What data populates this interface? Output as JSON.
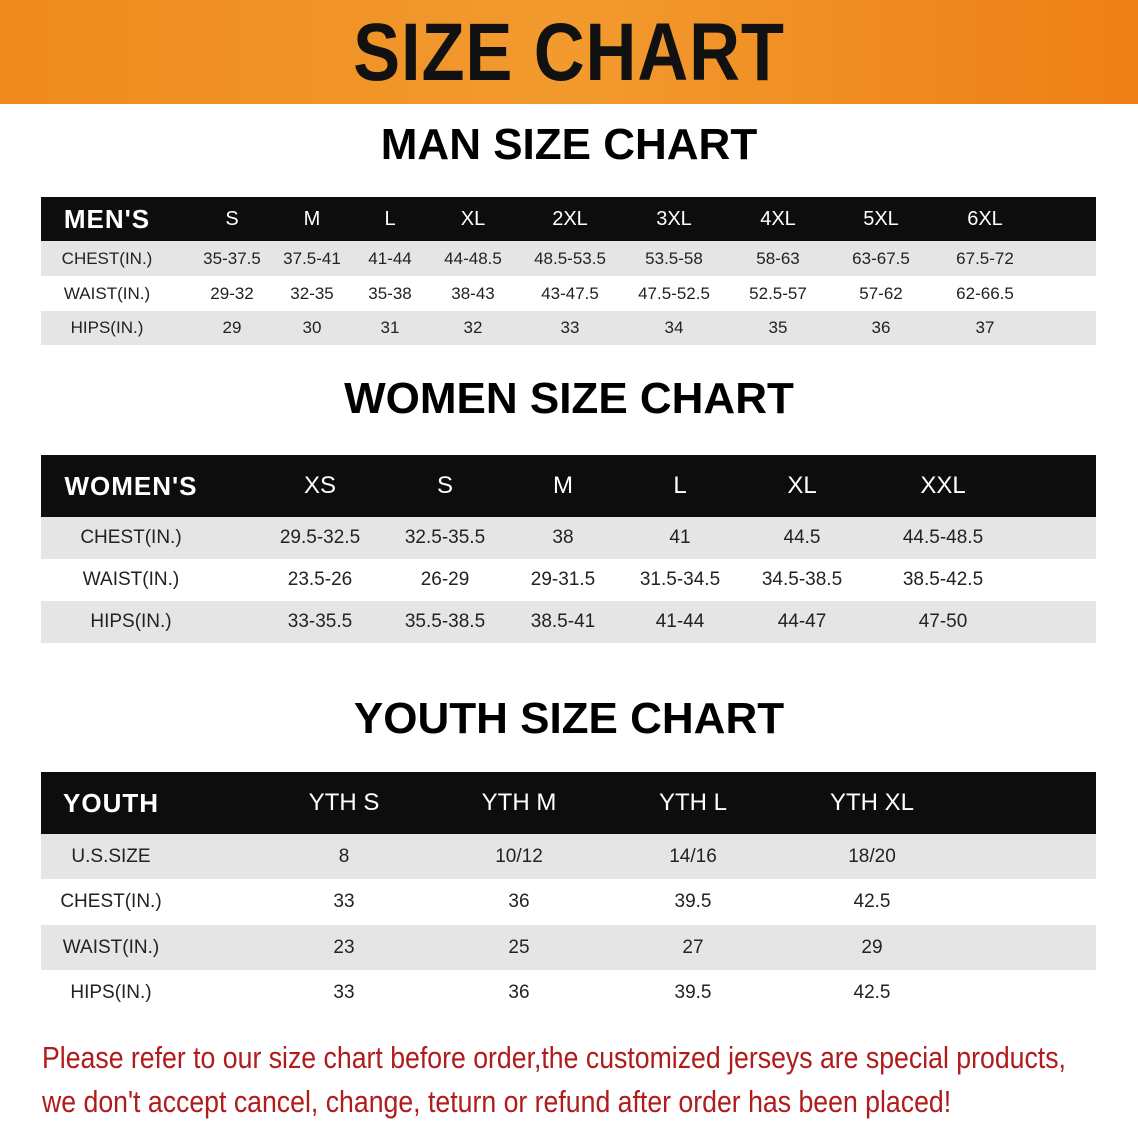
{
  "banner_title": "SIZE CHART",
  "colors": {
    "banner": "#f0891e",
    "header_row": "#0d0d0d",
    "stripe": "#e5e5e6",
    "note": "#b01c1c"
  },
  "men": {
    "title": "MAN SIZE CHART",
    "columns": [
      "MEN'S",
      "S",
      "M",
      "L",
      "XL",
      "2XL",
      "3XL",
      "4XL",
      "5XL",
      "6XL"
    ],
    "rows": [
      [
        "CHEST(IN.)",
        "35-37.5",
        "37.5-41",
        "41-44",
        "44-48.5",
        "48.5-53.5",
        "53.5-58",
        "58-63",
        "63-67.5",
        "67.5-72"
      ],
      [
        "WAIST(IN.)",
        "29-32",
        "32-35",
        "35-38",
        "38-43",
        "43-47.5",
        "47.5-52.5",
        "52.5-57",
        "57-62",
        "62-66.5"
      ],
      [
        "HIPS(IN.)",
        "29",
        "30",
        "31",
        "32",
        "33",
        "34",
        "35",
        "36",
        "37"
      ]
    ]
  },
  "women": {
    "title": "WOMEN SIZE CHART",
    "columns": [
      "WOMEN'S",
      "XS",
      "S",
      "M",
      "L",
      "XL",
      "XXL"
    ],
    "rows": [
      [
        "CHEST(IN.)",
        "29.5-32.5",
        "32.5-35.5",
        "38",
        "41",
        "44.5",
        "44.5-48.5"
      ],
      [
        "WAIST(IN.)",
        "23.5-26",
        "26-29",
        "29-31.5",
        "31.5-34.5",
        "34.5-38.5",
        "38.5-42.5"
      ],
      [
        "HIPS(IN.)",
        "33-35.5",
        "35.5-38.5",
        "38.5-41",
        "41-44",
        "44-47",
        "47-50"
      ]
    ]
  },
  "youth": {
    "title": "YOUTH SIZE CHART",
    "columns": [
      "YOUTH",
      "YTH S",
      "YTH M",
      "YTH L",
      "YTH XL"
    ],
    "rows": [
      [
        "U.S.SIZE",
        "8",
        "10/12",
        "14/16",
        "18/20"
      ],
      [
        "CHEST(IN.)",
        "33",
        "36",
        "39.5",
        "42.5"
      ],
      [
        "WAIST(IN.)",
        "23",
        "25",
        "27",
        "29"
      ],
      [
        "HIPS(IN.)",
        "33",
        "36",
        "39.5",
        "42.5"
      ]
    ]
  },
  "note": {
    "line1": "Please refer to our size chart before order,the customized jerseys are special products,",
    "line2": "we don't accept cancel, change, teturn or refund after order has been placed!"
  }
}
